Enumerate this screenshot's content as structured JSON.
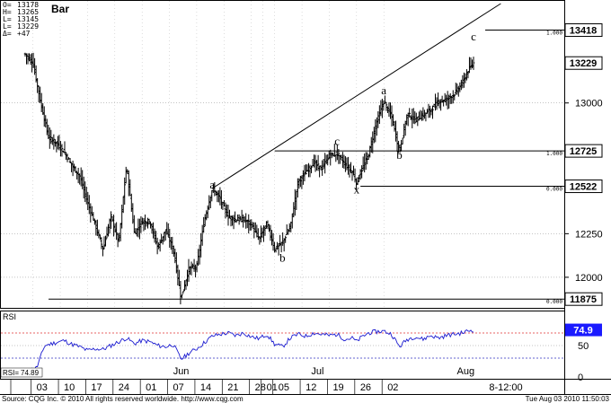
{
  "chart_data": {
    "type": "candlestick",
    "title": "Bar",
    "ohlc_header": [
      {
        "label": "O=",
        "value": "13178"
      },
      {
        "label": "H=",
        "value": "13265"
      },
      {
        "label": "L=",
        "value": "13145"
      },
      {
        "label": "L=",
        "value": "13229"
      },
      {
        "label": "Δ=",
        "value": "+47"
      }
    ],
    "price_ylim": [
      11840,
      13570
    ],
    "price_ticks": [
      {
        "value": 13000,
        "label": "13000"
      },
      {
        "value": 12250,
        "label": "12250"
      },
      {
        "value": 12000,
        "label": "12000"
      }
    ],
    "price_boxes": [
      {
        "value": 13418,
        "label": "13418"
      },
      {
        "value": 13229,
        "label": "13229"
      },
      {
        "value": 12725,
        "label": "12725"
      },
      {
        "value": 12522,
        "label": "12522"
      },
      {
        "value": 11875,
        "label": "11875"
      }
    ],
    "levels": [
      {
        "value": 13418,
        "label": "1.000"
      },
      {
        "value": 12725,
        "label": "1.000"
      },
      {
        "value": 12522,
        "label": "0.000"
      },
      {
        "value": 11875,
        "label": "0.000"
      }
    ],
    "wave_labels": [
      {
        "text": "a",
        "bar": 48,
        "value": 12510
      },
      {
        "text": "b",
        "bar": 66,
        "value": 12090
      },
      {
        "text": "c",
        "bar": 80,
        "value": 12760
      },
      {
        "text": "x",
        "bar": 85,
        "value": 12480
      },
      {
        "text": "a",
        "bar": 92,
        "value": 13050
      },
      {
        "text": "b",
        "bar": 96,
        "value": 12680
      },
      {
        "text": "c",
        "bar": 115,
        "value": 13360
      }
    ],
    "price_path": [
      [
        0,
        13280
      ],
      [
        2,
        13230
      ],
      [
        4,
        13000
      ],
      [
        6,
        12800
      ],
      [
        8,
        12770
      ],
      [
        10,
        12720
      ],
      [
        12,
        12640
      ],
      [
        14,
        12580
      ],
      [
        16,
        12430
      ],
      [
        18,
        12300
      ],
      [
        20,
        12160
      ],
      [
        22,
        12350
      ],
      [
        24,
        12200
      ],
      [
        26,
        12640
      ],
      [
        28,
        12250
      ],
      [
        30,
        12320
      ],
      [
        32,
        12320
      ],
      [
        34,
        12170
      ],
      [
        36,
        12270
      ],
      [
        38,
        12160
      ],
      [
        40,
        11880
      ],
      [
        42,
        12050
      ],
      [
        44,
        12060
      ],
      [
        46,
        12330
      ],
      [
        48,
        12510
      ],
      [
        50,
        12450
      ],
      [
        52,
        12350
      ],
      [
        54,
        12330
      ],
      [
        56,
        12330
      ],
      [
        58,
        12300
      ],
      [
        60,
        12220
      ],
      [
        62,
        12310
      ],
      [
        64,
        12160
      ],
      [
        66,
        12200
      ],
      [
        68,
        12290
      ],
      [
        70,
        12550
      ],
      [
        72,
        12600
      ],
      [
        74,
        12660
      ],
      [
        76,
        12620
      ],
      [
        78,
        12700
      ],
      [
        80,
        12710
      ],
      [
        82,
        12650
      ],
      [
        84,
        12600
      ],
      [
        85,
        12540
      ],
      [
        86,
        12600
      ],
      [
        88,
        12700
      ],
      [
        90,
        12880
      ],
      [
        92,
        13010
      ],
      [
        94,
        12920
      ],
      [
        95,
        12820
      ],
      [
        96,
        12720
      ],
      [
        98,
        12940
      ],
      [
        100,
        12900
      ],
      [
        102,
        12930
      ],
      [
        104,
        12960
      ],
      [
        106,
        13010
      ],
      [
        108,
        13020
      ],
      [
        110,
        13050
      ],
      [
        112,
        13110
      ],
      [
        114,
        13200
      ],
      [
        115,
        13229
      ]
    ],
    "rsi": {
      "label": "RSI",
      "readout": "74.9",
      "bottom_readout": "74.89",
      "ticks": [
        "50",
        "0"
      ],
      "overbought": 70,
      "oversold": 30,
      "path": [
        [
          0,
          8
        ],
        [
          3,
          15
        ],
        [
          5,
          50
        ],
        [
          8,
          55
        ],
        [
          10,
          58
        ],
        [
          12,
          52
        ],
        [
          14,
          48
        ],
        [
          16,
          42
        ],
        [
          18,
          45
        ],
        [
          20,
          44
        ],
        [
          22,
          50
        ],
        [
          24,
          56
        ],
        [
          26,
          62
        ],
        [
          28,
          53
        ],
        [
          30,
          58
        ],
        [
          32,
          56
        ],
        [
          34,
          50
        ],
        [
          36,
          48
        ],
        [
          38,
          52
        ],
        [
          40,
          28
        ],
        [
          42,
          38
        ],
        [
          44,
          45
        ],
        [
          46,
          55
        ],
        [
          48,
          65
        ],
        [
          50,
          68
        ],
        [
          52,
          70
        ],
        [
          54,
          66
        ],
        [
          56,
          70
        ],
        [
          58,
          64
        ],
        [
          60,
          61
        ],
        [
          62,
          68
        ],
        [
          64,
          52
        ],
        [
          66,
          48
        ],
        [
          68,
          62
        ],
        [
          70,
          68
        ],
        [
          72,
          65
        ],
        [
          74,
          70
        ],
        [
          76,
          68
        ],
        [
          78,
          66
        ],
        [
          80,
          68
        ],
        [
          82,
          60
        ],
        [
          84,
          62
        ],
        [
          85,
          56
        ],
        [
          86,
          62
        ],
        [
          88,
          70
        ],
        [
          90,
          72
        ],
        [
          92,
          73
        ],
        [
          94,
          68
        ],
        [
          96,
          48
        ],
        [
          98,
          60
        ],
        [
          100,
          64
        ],
        [
          102,
          60
        ],
        [
          104,
          66
        ],
        [
          106,
          62
        ],
        [
          108,
          66
        ],
        [
          110,
          68
        ],
        [
          112,
          70
        ],
        [
          114,
          74
        ],
        [
          115,
          74.9
        ]
      ]
    },
    "x_months": [
      {
        "bar": 40,
        "label": "Jun"
      },
      {
        "bar": 75,
        "label": "Jul"
      },
      {
        "bar": 113,
        "label": "Aug"
      }
    ],
    "x_days": [
      {
        "bar": 2,
        "label": "03"
      },
      {
        "bar": 9,
        "label": "10"
      },
      {
        "bar": 16,
        "label": "17"
      },
      {
        "bar": 23,
        "label": "24"
      },
      {
        "bar": 30,
        "label": "01"
      },
      {
        "bar": 37,
        "label": "07"
      },
      {
        "bar": 44,
        "label": "14"
      },
      {
        "bar": 51,
        "label": "21"
      },
      {
        "bar": 58,
        "label": "28"
      },
      {
        "bar": 61,
        "label": "01"
      },
      {
        "bar": 64,
        "label": "05"
      },
      {
        "bar": 71,
        "label": "12"
      },
      {
        "bar": 78,
        "label": "19"
      },
      {
        "bar": 85,
        "label": "26"
      },
      {
        "bar": 92,
        "label": "02"
      }
    ],
    "x_extra_label": "8-12:00"
  },
  "footer": {
    "source": "Source: CQG Inc. © 2010 All rights reserved worldwide. http://www.cqg.com",
    "timestamp": "Tue Aug 03 2010 11:50:03"
  }
}
